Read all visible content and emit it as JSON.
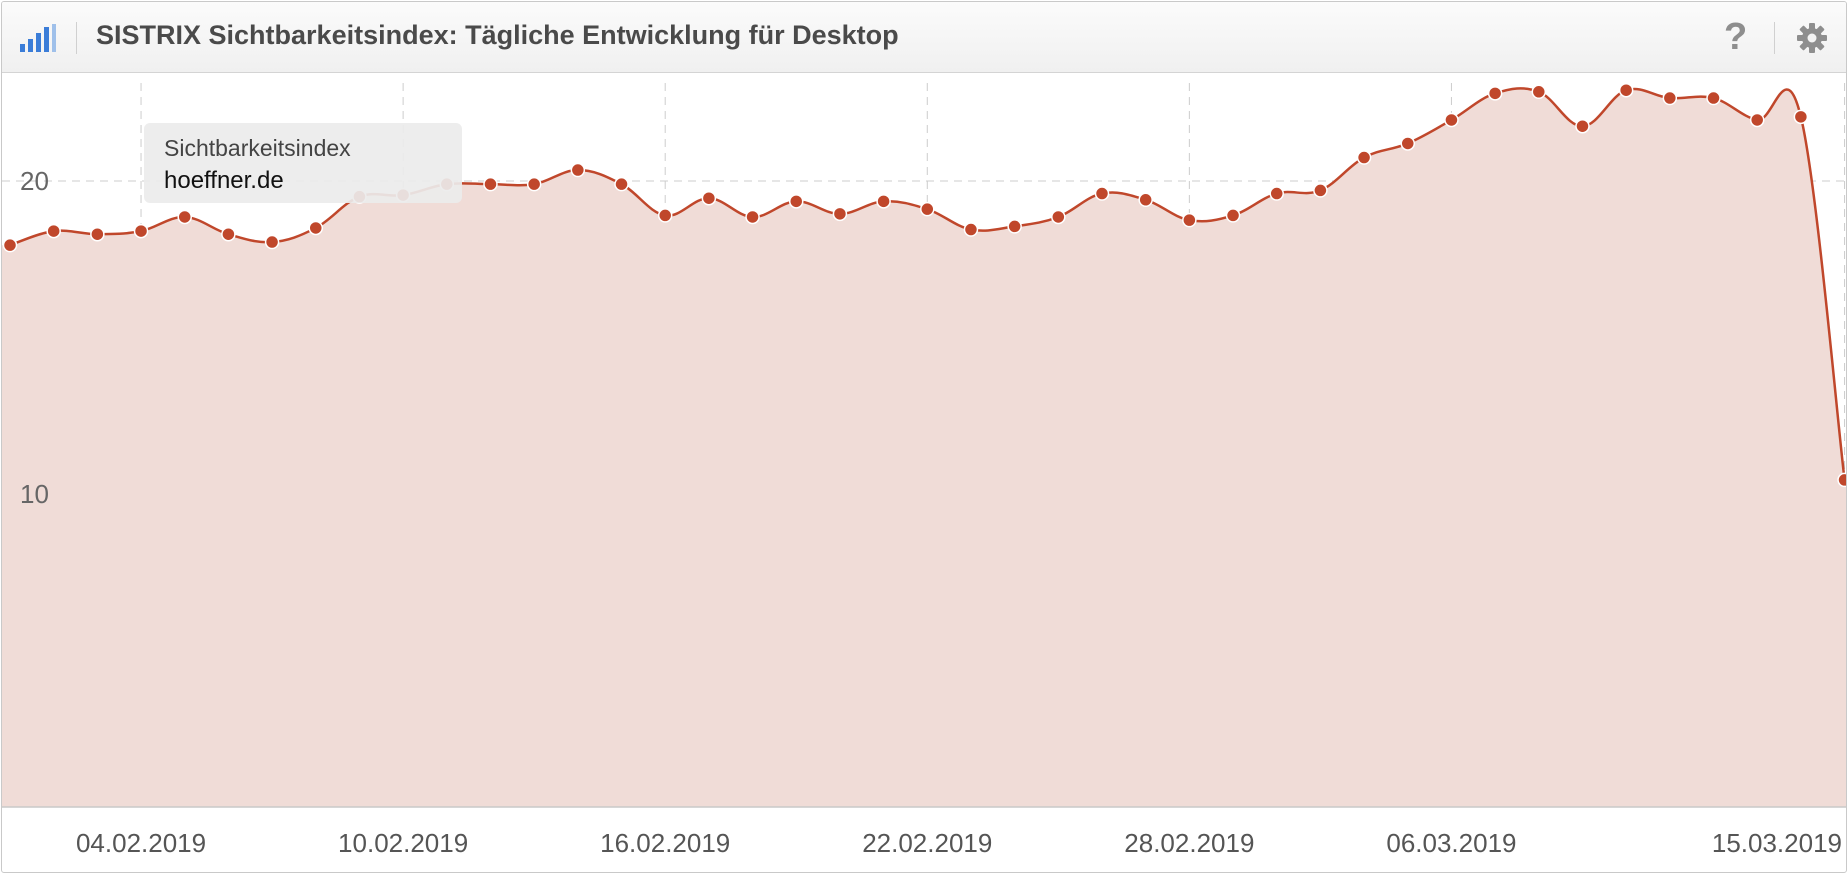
{
  "header": {
    "title": "SISTRIX Sichtbarkeitsindex: Tägliche Entwicklung für Desktop",
    "icons": [
      "bar-chart-icon",
      "help-icon",
      "gear-icon"
    ],
    "help_glyph": "?"
  },
  "tooltip": {
    "label": "Sichtbarkeitsindex",
    "domain": "hoeffner.de"
  },
  "colors": {
    "line": "#c0472b",
    "area": "#f0dcd7",
    "grid": "#cccccc",
    "accent_blue": "#3b7dd8"
  },
  "chart_data": {
    "type": "area",
    "title": "SISTRIX Sichtbarkeitsindex: Tägliche Entwicklung für Desktop",
    "series": [
      {
        "name": "hoeffner.de",
        "x": [
          "01.02.2019",
          "02.02.2019",
          "03.02.2019",
          "04.02.2019",
          "05.02.2019",
          "06.02.2019",
          "07.02.2019",
          "08.02.2019",
          "09.02.2019",
          "10.02.2019",
          "11.02.2019",
          "12.02.2019",
          "13.02.2019",
          "14.02.2019",
          "15.02.2019",
          "16.02.2019",
          "17.02.2019",
          "18.02.2019",
          "19.02.2019",
          "20.02.2019",
          "21.02.2019",
          "22.02.2019",
          "23.02.2019",
          "24.02.2019",
          "25.02.2019",
          "26.02.2019",
          "27.02.2019",
          "28.02.2019",
          "01.03.2019",
          "02.03.2019",
          "03.03.2019",
          "04.03.2019",
          "05.03.2019",
          "06.03.2019",
          "07.03.2019",
          "08.03.2019",
          "09.03.2019",
          "10.03.2019",
          "11.03.2019",
          "12.03.2019",
          "13.03.2019",
          "14.03.2019",
          "15.03.2019"
        ],
        "values": [
          17.95,
          18.4,
          18.3,
          18.4,
          18.85,
          18.3,
          18.05,
          18.5,
          19.5,
          19.55,
          19.9,
          19.9,
          19.9,
          20.35,
          19.9,
          18.9,
          19.45,
          18.85,
          19.35,
          18.95,
          19.35,
          19.1,
          18.45,
          18.55,
          18.85,
          19.6,
          19.4,
          18.75,
          18.9,
          19.6,
          19.7,
          20.75,
          21.2,
          21.95,
          22.8,
          22.85,
          21.75,
          22.9,
          22.65,
          22.65,
          21.95,
          22.05,
          10.45
        ]
      }
    ],
    "xticks": [
      "04.02.2019",
      "10.02.2019",
      "16.02.2019",
      "22.02.2019",
      "28.02.2019",
      "06.03.2019",
      "15.03.2019"
    ],
    "yticks": [
      10,
      20
    ],
    "ylim": [
      0,
      23.5
    ],
    "grid": true,
    "legend": "none"
  }
}
